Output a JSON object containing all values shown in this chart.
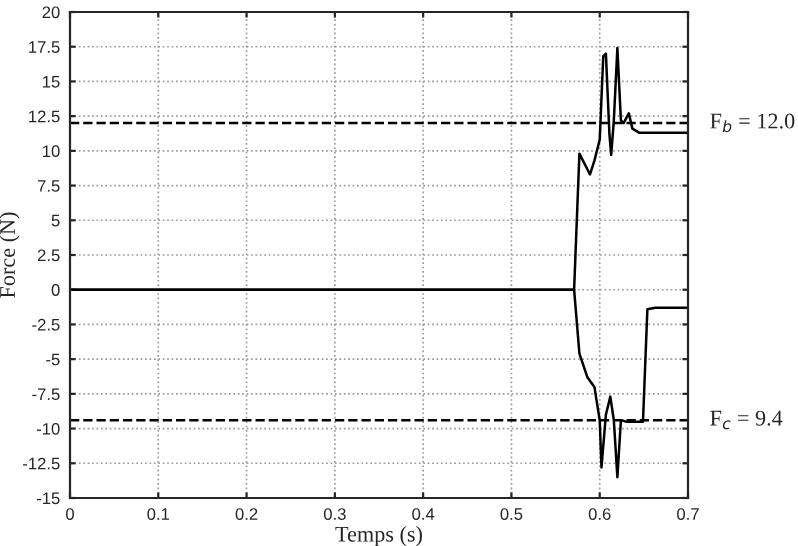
{
  "chart_data": {
    "type": "line",
    "xlabel": "Temps (s)",
    "ylabel": "Force (N)",
    "xlim": [
      0,
      0.7
    ],
    "ylim": [
      -15,
      20
    ],
    "xticks": [
      0,
      0.1,
      0.2,
      0.3,
      0.4,
      0.5,
      0.6,
      0.7
    ],
    "yticks": [
      -15,
      -12.5,
      -10,
      -7.5,
      -5,
      -2.5,
      0,
      2.5,
      5,
      7.5,
      10,
      12.5,
      15,
      17.5,
      20
    ],
    "grid": true,
    "legend": false,
    "series": [
      {
        "color": "#000000",
        "x": [
          0,
          0.571,
          0.577,
          0.589,
          0.594,
          0.6,
          0.604,
          0.607,
          0.611,
          0.613,
          0.616,
          0.62,
          0.624,
          0.627,
          0.633,
          0.637,
          0.645,
          0.7
        ],
        "values": [
          0,
          0,
          9.8,
          8.3,
          9.3,
          10.8,
          16.8,
          17.0,
          11.2,
          9.7,
          12.2,
          17.4,
          12.2,
          12.0,
          12.7,
          11.6,
          11.3,
          11.3
        ]
      },
      {
        "color": "#000000",
        "x": [
          0,
          0.571,
          0.577,
          0.586,
          0.594,
          0.6,
          0.602,
          0.607,
          0.612,
          0.616,
          0.62,
          0.624,
          0.63,
          0.649,
          0.654,
          0.663,
          0.7
        ],
        "values": [
          0,
          0,
          -4.6,
          -6.3,
          -7.0,
          -9.4,
          -12.8,
          -9.0,
          -7.7,
          -9.4,
          -13.5,
          -9.4,
          -9.5,
          -9.5,
          -1.4,
          -1.3,
          -1.3
        ]
      }
    ],
    "ref_lines": [
      {
        "axis": "y",
        "value": 12.0,
        "color": "#000000",
        "line_style": "dashed"
      },
      {
        "axis": "y",
        "value": -9.4,
        "color": "#000000",
        "line_style": "dashed"
      }
    ],
    "annotations": [
      "F$_{b}$ = 12.0",
      "F$_{c}$ = 9.4"
    ]
  }
}
